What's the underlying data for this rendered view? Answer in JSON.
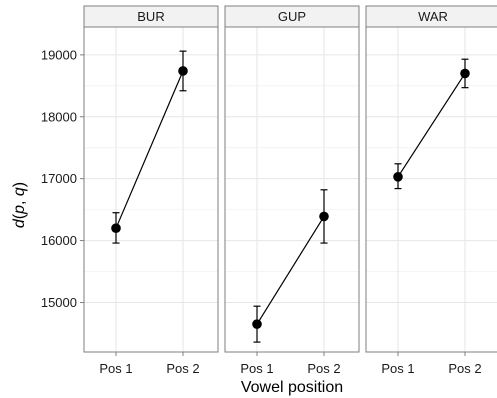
{
  "chart_data": {
    "type": "line",
    "facets": [
      {
        "label": "BUR",
        "points": [
          {
            "x": "Pos 1",
            "y": 16200,
            "ymin": 15960,
            "ymax": 16450
          },
          {
            "x": "Pos 2",
            "y": 18740,
            "ymin": 18420,
            "ymax": 19060
          }
        ]
      },
      {
        "label": "GUP",
        "points": [
          {
            "x": "Pos 1",
            "y": 14650,
            "ymin": 14360,
            "ymax": 14940
          },
          {
            "x": "Pos 2",
            "y": 16390,
            "ymin": 15960,
            "ymax": 16820
          }
        ]
      },
      {
        "label": "WAR",
        "points": [
          {
            "x": "Pos 1",
            "y": 17030,
            "ymin": 16840,
            "ymax": 17240
          },
          {
            "x": "Pos 2",
            "y": 18700,
            "ymin": 18470,
            "ymax": 18930
          }
        ]
      }
    ],
    "categories": [
      "Pos 1",
      "Pos 2"
    ],
    "xlabel": "Vowel position",
    "ylabel": "d(p, q)",
    "ylim": [
      14200,
      19450
    ],
    "yticks": [
      15000,
      16000,
      17000,
      18000,
      19000
    ],
    "grid": true,
    "facet_bg": "#ffffff",
    "strip_bg": "#f2f2f2",
    "major_grid_color": "#e6e6e6",
    "minor_grid_color": "#f4f4f4",
    "border_color": "#7f7f7f",
    "line_color": "#000000"
  }
}
